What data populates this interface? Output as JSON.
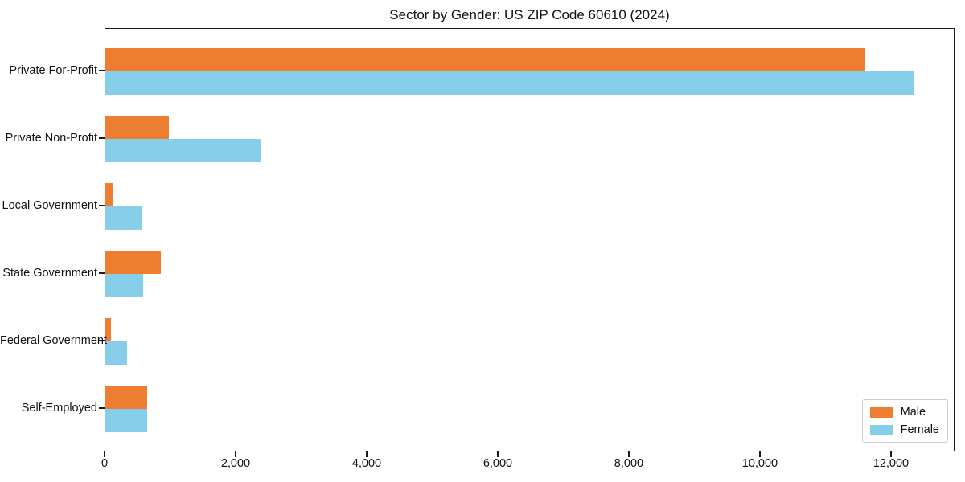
{
  "title": "Sector by Gender: US ZIP Code 60610 (2024)",
  "chart_data": {
    "type": "bar",
    "orientation": "horizontal",
    "title": "Sector by Gender: US ZIP Code 60610 (2024)",
    "categories": [
      "Private For-Profit",
      "Private Non-Profit",
      "Local Government",
      "State Government",
      "Federal Government",
      "Self-Employed"
    ],
    "series": [
      {
        "name": "Male",
        "color": "#ed7d31",
        "values": [
          11600,
          970,
          120,
          850,
          85,
          640
        ]
      },
      {
        "name": "Female",
        "color": "#87ceeb",
        "values": [
          12340,
          2380,
          560,
          580,
          330,
          640
        ]
      }
    ],
    "xlabel": "",
    "ylabel": "",
    "xlim": [
      0,
      12970
    ],
    "xticks": [
      0,
      2000,
      4000,
      6000,
      8000,
      10000,
      12000
    ],
    "xtick_labels": [
      "0",
      "2,000",
      "4,000",
      "6,000",
      "8,000",
      "10,000",
      "12,000"
    ],
    "grid": false,
    "legend_position": "lower right"
  },
  "colors": {
    "male": "#ed7d31",
    "female": "#87ceeb",
    "axis": "#1a1a1a",
    "legend_border": "#cccccc",
    "background": "#ffffff"
  }
}
